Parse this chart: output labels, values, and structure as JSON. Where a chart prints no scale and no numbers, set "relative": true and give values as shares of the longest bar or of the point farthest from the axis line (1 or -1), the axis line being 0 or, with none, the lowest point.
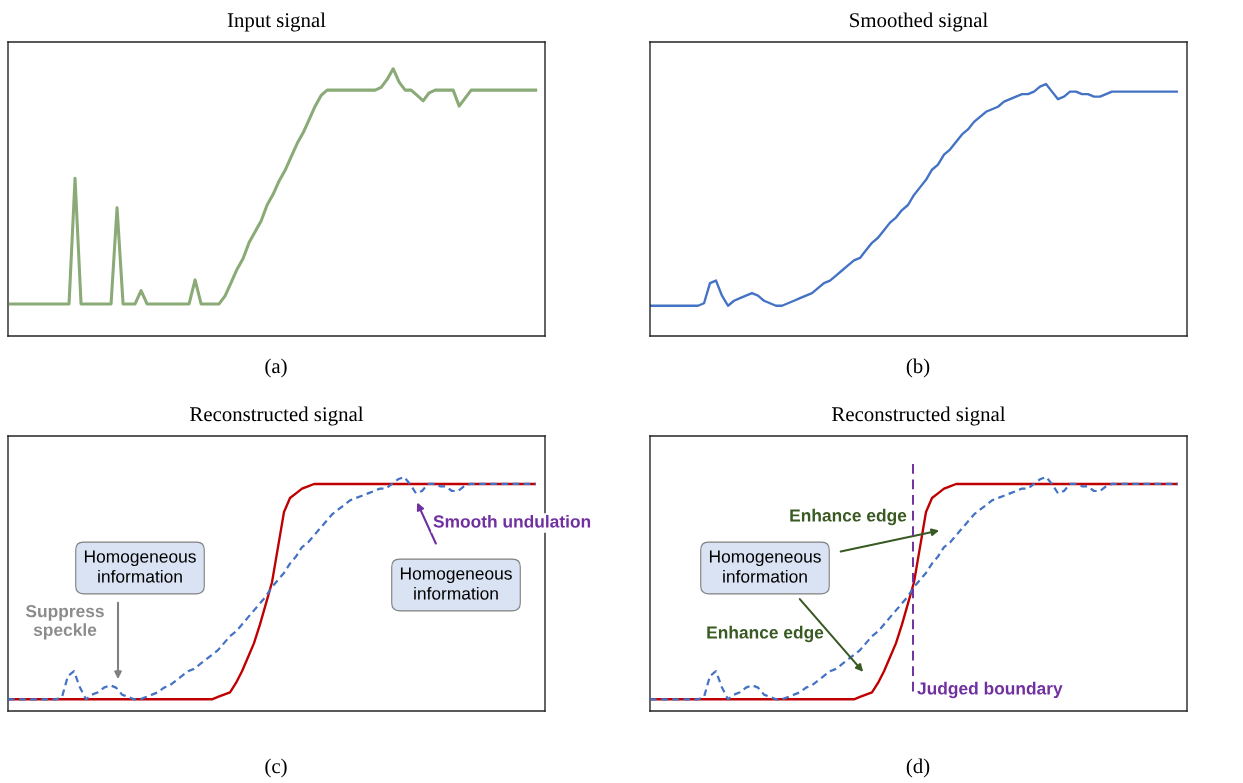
{
  "chart_data": [
    {
      "type": "line",
      "title": "Input signal",
      "relative": true,
      "annotations": [
        "(a)"
      ],
      "categories": [
        null,
        null,
        null,
        null,
        null,
        null,
        null,
        null,
        null,
        null,
        null,
        null,
        null,
        null,
        null,
        null,
        null,
        null,
        null,
        null,
        null,
        null,
        null,
        null,
        null,
        null,
        null,
        null,
        null,
        null,
        null,
        null,
        null,
        null,
        null,
        null,
        null,
        null,
        null,
        null,
        null,
        null,
        null,
        null,
        null,
        null,
        null,
        null,
        null,
        null,
        null,
        null,
        null,
        null,
        null,
        null,
        null,
        null,
        null,
        null,
        null,
        null,
        null,
        null,
        null,
        null,
        null,
        null,
        null,
        null,
        null,
        null,
        null,
        null,
        null,
        null,
        null,
        null,
        null,
        null,
        null,
        null,
        null,
        null,
        null,
        null,
        null,
        null,
        null
      ],
      "series": [
        {
          "color": "#8aab77",
          "line_style": "solid",
          "values": [
            0.12,
            0.12,
            0.12,
            0.12,
            0.12,
            0.12,
            0.12,
            0.12,
            0.12,
            0.12,
            0.12,
            0.59,
            0.12,
            0.12,
            0.12,
            0.12,
            0.12,
            0.12,
            0.48,
            0.12,
            0.12,
            0.12,
            0.17,
            0.12,
            0.12,
            0.12,
            0.12,
            0.12,
            0.12,
            0.12,
            0.12,
            0.21,
            0.12,
            0.12,
            0.12,
            0.12,
            0.15,
            0.2,
            0.25,
            0.29,
            0.35,
            0.39,
            0.43,
            0.49,
            0.53,
            0.58,
            0.62,
            0.67,
            0.72,
            0.76,
            0.81,
            0.86,
            0.9,
            0.92,
            0.92,
            0.92,
            0.92,
            0.92,
            0.92,
            0.92,
            0.92,
            0.92,
            0.93,
            0.96,
            1.0,
            0.95,
            0.92,
            0.92,
            0.9,
            0.88,
            0.91,
            0.92,
            0.92,
            0.92,
            0.92,
            0.86,
            0.89,
            0.92,
            0.92,
            0.92,
            0.92,
            0.92,
            0.92,
            0.92,
            0.92,
            0.92,
            0.92,
            0.92,
            0.92
          ]
        }
      ]
    },
    {
      "type": "line",
      "title": "Smoothed signal",
      "relative": true,
      "annotations": [
        "(b)"
      ],
      "categories": [
        null,
        null,
        null,
        null,
        null,
        null,
        null,
        null,
        null,
        null,
        null,
        null,
        null,
        null,
        null,
        null,
        null,
        null,
        null,
        null,
        null,
        null,
        null,
        null,
        null,
        null,
        null,
        null,
        null,
        null,
        null,
        null,
        null,
        null,
        null,
        null,
        null,
        null,
        null,
        null,
        null,
        null,
        null,
        null,
        null,
        null,
        null,
        null,
        null,
        null,
        null,
        null,
        null,
        null,
        null,
        null,
        null,
        null,
        null,
        null,
        null,
        null,
        null,
        null,
        null,
        null,
        null,
        null,
        null,
        null,
        null,
        null,
        null,
        null,
        null,
        null,
        null,
        null,
        null,
        null,
        null,
        null,
        null,
        null,
        null,
        null,
        null,
        null,
        null
      ],
      "series": [
        {
          "color": "#4472c4",
          "line_style": "solid",
          "values": [
            0.12,
            0.12,
            0.12,
            0.12,
            0.12,
            0.12,
            0.12,
            0.12,
            0.12,
            0.13,
            0.21,
            0.22,
            0.16,
            0.12,
            0.14,
            0.15,
            0.16,
            0.17,
            0.16,
            0.14,
            0.13,
            0.12,
            0.12,
            0.13,
            0.14,
            0.15,
            0.16,
            0.17,
            0.19,
            0.21,
            0.22,
            0.24,
            0.26,
            0.28,
            0.3,
            0.31,
            0.34,
            0.37,
            0.39,
            0.42,
            0.45,
            0.47,
            0.5,
            0.52,
            0.56,
            0.59,
            0.62,
            0.66,
            0.68,
            0.72,
            0.74,
            0.77,
            0.8,
            0.82,
            0.85,
            0.87,
            0.89,
            0.9,
            0.91,
            0.93,
            0.94,
            0.95,
            0.96,
            0.96,
            0.97,
            0.99,
            1.0,
            0.97,
            0.94,
            0.95,
            0.97,
            0.97,
            0.96,
            0.96,
            0.95,
            0.95,
            0.96,
            0.97,
            0.97,
            0.97,
            0.97,
            0.97,
            0.97,
            0.97,
            0.97,
            0.97,
            0.97,
            0.97,
            0.97
          ]
        }
      ]
    },
    {
      "type": "line",
      "title": "Reconstructed signal",
      "relative": true,
      "annotations": [
        "(c)",
        "Suppress\nspeckle",
        "Homogeneous\ninformation",
        "Smooth undulation",
        "Homogeneous\ninformation"
      ],
      "categories": [
        null,
        null,
        null,
        null,
        null,
        null,
        null,
        null,
        null,
        null,
        null,
        null,
        null,
        null,
        null,
        null,
        null,
        null,
        null,
        null,
        null,
        null,
        null,
        null,
        null,
        null,
        null,
        null,
        null,
        null,
        null,
        null,
        null,
        null,
        null,
        null,
        null,
        null,
        null,
        null,
        null,
        null,
        null,
        null,
        null,
        null,
        null,
        null,
        null,
        null,
        null,
        null,
        null,
        null,
        null,
        null,
        null,
        null,
        null,
        null,
        null,
        null,
        null,
        null,
        null,
        null,
        null,
        null,
        null,
        null,
        null,
        null,
        null,
        null,
        null,
        null,
        null,
        null,
        null,
        null,
        null,
        null,
        null,
        null,
        null,
        null,
        null,
        null,
        null
      ],
      "series": [
        {
          "color": "#c00000",
          "line_style": "solid",
          "values": [
            0.05,
            0.05,
            0.05,
            0.05,
            0.05,
            0.05,
            0.05,
            0.05,
            0.05,
            0.05,
            0.05,
            0.05,
            0.05,
            0.05,
            0.05,
            0.05,
            0.05,
            0.05,
            0.05,
            0.05,
            0.05,
            0.05,
            0.05,
            0.05,
            0.05,
            0.05,
            0.05,
            0.05,
            0.05,
            0.05,
            0.05,
            0.05,
            0.05,
            0.05,
            0.05,
            0.06,
            0.07,
            0.08,
            0.12,
            0.17,
            0.23,
            0.29,
            0.37,
            0.46,
            0.55,
            0.7,
            0.85,
            0.91,
            0.93,
            0.95,
            0.96,
            0.97,
            0.97,
            0.97,
            0.97,
            0.97,
            0.97,
            0.97,
            0.97,
            0.97,
            0.97,
            0.97,
            0.97,
            0.97,
            0.97,
            0.97,
            0.97,
            0.97,
            0.97,
            0.97,
            0.97,
            0.97,
            0.97,
            0.97,
            0.97,
            0.97,
            0.97,
            0.97,
            0.97,
            0.97,
            0.97,
            0.97,
            0.97,
            0.97,
            0.97,
            0.97,
            0.97,
            0.97,
            0.97
          ]
        },
        {
          "color": "#4472c4",
          "line_style": "dashed",
          "values": [
            0.05,
            0.05,
            0.05,
            0.05,
            0.05,
            0.05,
            0.05,
            0.05,
            0.05,
            0.06,
            0.15,
            0.17,
            0.1,
            0.05,
            0.07,
            0.08,
            0.1,
            0.11,
            0.1,
            0.07,
            0.06,
            0.05,
            0.05,
            0.06,
            0.07,
            0.08,
            0.1,
            0.11,
            0.13,
            0.15,
            0.17,
            0.18,
            0.2,
            0.22,
            0.24,
            0.26,
            0.29,
            0.32,
            0.34,
            0.37,
            0.4,
            0.43,
            0.46,
            0.49,
            0.53,
            0.56,
            0.59,
            0.63,
            0.66,
            0.7,
            0.72,
            0.75,
            0.78,
            0.81,
            0.84,
            0.86,
            0.88,
            0.9,
            0.91,
            0.92,
            0.93,
            0.94,
            0.95,
            0.95,
            0.97,
            0.99,
            1.0,
            0.97,
            0.93,
            0.94,
            0.97,
            0.97,
            0.96,
            0.96,
            0.94,
            0.94,
            0.96,
            0.97,
            0.97,
            0.97,
            0.97,
            0.97,
            0.97,
            0.97,
            0.97,
            0.97,
            0.97,
            0.97,
            0.97
          ]
        }
      ]
    },
    {
      "type": "line",
      "title": "Reconstructed signal",
      "relative": true,
      "annotations": [
        "(d)",
        "Enhance edge",
        "Homogeneous\ninformation",
        "Enhance edge",
        "Judged boundary"
      ],
      "categories": [
        null,
        null,
        null,
        null,
        null,
        null,
        null,
        null,
        null,
        null,
        null,
        null,
        null,
        null,
        null,
        null,
        null,
        null,
        null,
        null,
        null,
        null,
        null,
        null,
        null,
        null,
        null,
        null,
        null,
        null,
        null,
        null,
        null,
        null,
        null,
        null,
        null,
        null,
        null,
        null,
        null,
        null,
        null,
        null,
        null,
        null,
        null,
        null,
        null,
        null,
        null,
        null,
        null,
        null,
        null,
        null,
        null,
        null,
        null,
        null,
        null,
        null,
        null,
        null,
        null,
        null,
        null,
        null,
        null,
        null,
        null,
        null,
        null,
        null,
        null,
        null,
        null,
        null,
        null,
        null,
        null,
        null,
        null,
        null,
        null,
        null,
        null,
        null,
        null
      ],
      "series": [
        {
          "color": "#c00000",
          "line_style": "solid",
          "values": [
            0.05,
            0.05,
            0.05,
            0.05,
            0.05,
            0.05,
            0.05,
            0.05,
            0.05,
            0.05,
            0.05,
            0.05,
            0.05,
            0.05,
            0.05,
            0.05,
            0.05,
            0.05,
            0.05,
            0.05,
            0.05,
            0.05,
            0.05,
            0.05,
            0.05,
            0.05,
            0.05,
            0.05,
            0.05,
            0.05,
            0.05,
            0.05,
            0.05,
            0.05,
            0.05,
            0.06,
            0.07,
            0.08,
            0.12,
            0.17,
            0.23,
            0.29,
            0.37,
            0.46,
            0.55,
            0.7,
            0.85,
            0.91,
            0.93,
            0.95,
            0.96,
            0.97,
            0.97,
            0.97,
            0.97,
            0.97,
            0.97,
            0.97,
            0.97,
            0.97,
            0.97,
            0.97,
            0.97,
            0.97,
            0.97,
            0.97,
            0.97,
            0.97,
            0.97,
            0.97,
            0.97,
            0.97,
            0.97,
            0.97,
            0.97,
            0.97,
            0.97,
            0.97,
            0.97,
            0.97,
            0.97,
            0.97,
            0.97,
            0.97,
            0.97,
            0.97,
            0.97,
            0.97,
            0.97
          ]
        },
        {
          "color": "#4472c4",
          "line_style": "dashed",
          "values": [
            0.05,
            0.05,
            0.05,
            0.05,
            0.05,
            0.05,
            0.05,
            0.05,
            0.05,
            0.06,
            0.15,
            0.17,
            0.1,
            0.05,
            0.07,
            0.08,
            0.1,
            0.11,
            0.1,
            0.07,
            0.06,
            0.05,
            0.05,
            0.06,
            0.07,
            0.08,
            0.1,
            0.11,
            0.13,
            0.15,
            0.17,
            0.18,
            0.2,
            0.22,
            0.24,
            0.26,
            0.29,
            0.32,
            0.34,
            0.37,
            0.4,
            0.43,
            0.46,
            0.49,
            0.53,
            0.56,
            0.59,
            0.63,
            0.66,
            0.7,
            0.72,
            0.75,
            0.78,
            0.81,
            0.84,
            0.86,
            0.88,
            0.9,
            0.91,
            0.92,
            0.93,
            0.94,
            0.95,
            0.95,
            0.97,
            0.99,
            1.0,
            0.97,
            0.93,
            0.94,
            0.97,
            0.97,
            0.96,
            0.96,
            0.94,
            0.94,
            0.96,
            0.97,
            0.97,
            0.97,
            0.97,
            0.97,
            0.97,
            0.97,
            0.97,
            0.97,
            0.97,
            0.97,
            0.97
          ]
        }
      ]
    }
  ]
}
